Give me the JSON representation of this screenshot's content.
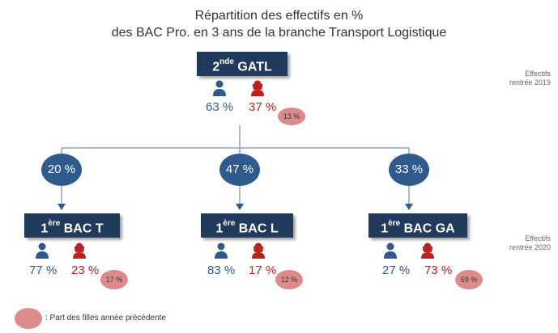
{
  "title": {
    "line1": "Répartition des effectifs en %",
    "line2": "des BAC Pro. en 3 ans de la branche Transport Logistique"
  },
  "top": {
    "label_prefix": "2",
    "label_sup": "nde",
    "label_suffix": " GATL",
    "male_pct": "63 %",
    "female_pct": "37 %",
    "prev_girls": "13 %",
    "side_label": "Effectifs",
    "side_year": "rentrée 2019"
  },
  "split": [
    {
      "pct": "20 %",
      "value": 20
    },
    {
      "pct": "47 %",
      "value": 47
    },
    {
      "pct": "33 %",
      "value": 33
    }
  ],
  "branches": [
    {
      "label_prefix": "1",
      "label_sup": "ère",
      "label_suffix": " BAC T",
      "male_pct": "77 %",
      "female_pct": "23 %",
      "prev_girls": "17 %"
    },
    {
      "label_prefix": "1",
      "label_sup": "ère",
      "label_suffix": " BAC L",
      "male_pct": "83 %",
      "female_pct": "17 %",
      "prev_girls": "12 %"
    },
    {
      "label_prefix": "1",
      "label_sup": "ère",
      "label_suffix": " BAC GA",
      "male_pct": "27 %",
      "female_pct": "73 %",
      "prev_girls": "69 %"
    }
  ],
  "bottom_side": {
    "label": "Effectifs",
    "year": "rentrée 2020"
  },
  "legend": {
    "text": ": Part des filles année précédente"
  },
  "colors": {
    "node": "#1f3a5c",
    "male": "#2e5a8e",
    "female": "#c0201b",
    "bubble": "#dc8a8a"
  },
  "icons": {
    "male": "male-person-icon",
    "female": "female-person-icon"
  }
}
